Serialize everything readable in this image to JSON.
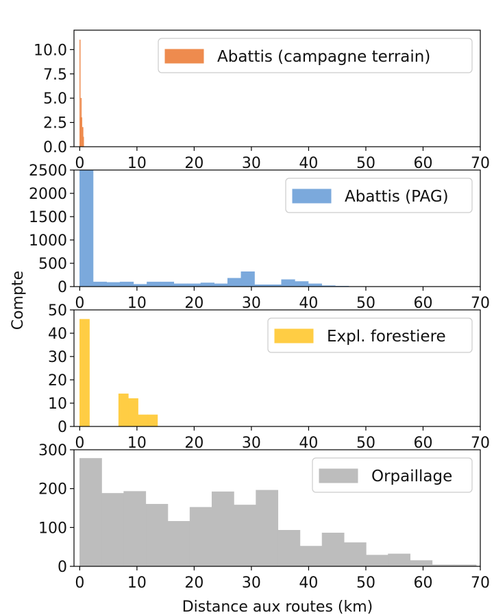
{
  "chart_data": {
    "type": "histogram",
    "xlabel": "Distance aux routes (km)",
    "ylabel": "Compte",
    "xlim": [
      -1,
      70
    ],
    "xticks": [
      0,
      10,
      20,
      30,
      40,
      50,
      60,
      70
    ],
    "legend_position": "top-right",
    "panels": [
      {
        "name": "Abattis (campagne terrain)",
        "color": "#EE8B4E",
        "ylim": [
          0,
          12
        ],
        "yticks": [
          "0.0",
          "2.5",
          "5.0",
          "7.5",
          "10.0"
        ],
        "edges": [
          0,
          0.1,
          0.2,
          0.3,
          0.4,
          0.5,
          0.6,
          0.7,
          0.8
        ],
        "values": [
          11,
          3,
          5,
          3,
          2,
          2,
          1,
          0
        ]
      },
      {
        "name": "Abattis (PAG)",
        "color": "#7BA9DC",
        "ylim": [
          0,
          2500
        ],
        "yticks": [
          "0",
          "500",
          "1000",
          "1500",
          "2000",
          "2500"
        ],
        "edges": [
          0,
          2.35,
          4.7,
          7.05,
          9.4,
          11.75,
          14.1,
          16.45,
          18.8,
          21.15,
          23.5,
          25.85,
          28.2,
          30.55,
          32.9,
          35.25,
          37.6,
          39.95,
          42.3,
          44.65,
          47
        ],
        "values": [
          2500,
          100,
          90,
          100,
          50,
          100,
          100,
          60,
          60,
          80,
          60,
          180,
          320,
          40,
          40,
          150,
          110,
          60,
          20,
          10
        ]
      },
      {
        "name": "Expl. forestiere",
        "color": "#FFCD44",
        "ylim": [
          0,
          50
        ],
        "yticks": [
          "0",
          "10",
          "20",
          "30",
          "40",
          "50"
        ],
        "edges": [
          0,
          1.7,
          3.4,
          5.1,
          6.8,
          8.5,
          10.2,
          11.9,
          13.6
        ],
        "values": [
          46,
          0,
          0,
          0,
          14,
          12,
          5,
          5
        ]
      },
      {
        "name": "Orpaillage",
        "color": "#BDBDBD",
        "ylim": [
          0,
          300
        ],
        "yticks": [
          "0",
          "100",
          "200",
          "300"
        ],
        "edges": [
          0,
          3.85,
          7.7,
          11.55,
          15.4,
          19.25,
          23.1,
          26.95,
          30.8,
          34.65,
          38.5,
          42.35,
          46.2,
          50.05,
          53.9,
          57.75,
          61.6,
          65.45,
          69.3
        ],
        "values": [
          278,
          188,
          193,
          160,
          116,
          152,
          192,
          158,
          196,
          93,
          52,
          86,
          61,
          29,
          32,
          15,
          4,
          4
        ]
      }
    ]
  }
}
